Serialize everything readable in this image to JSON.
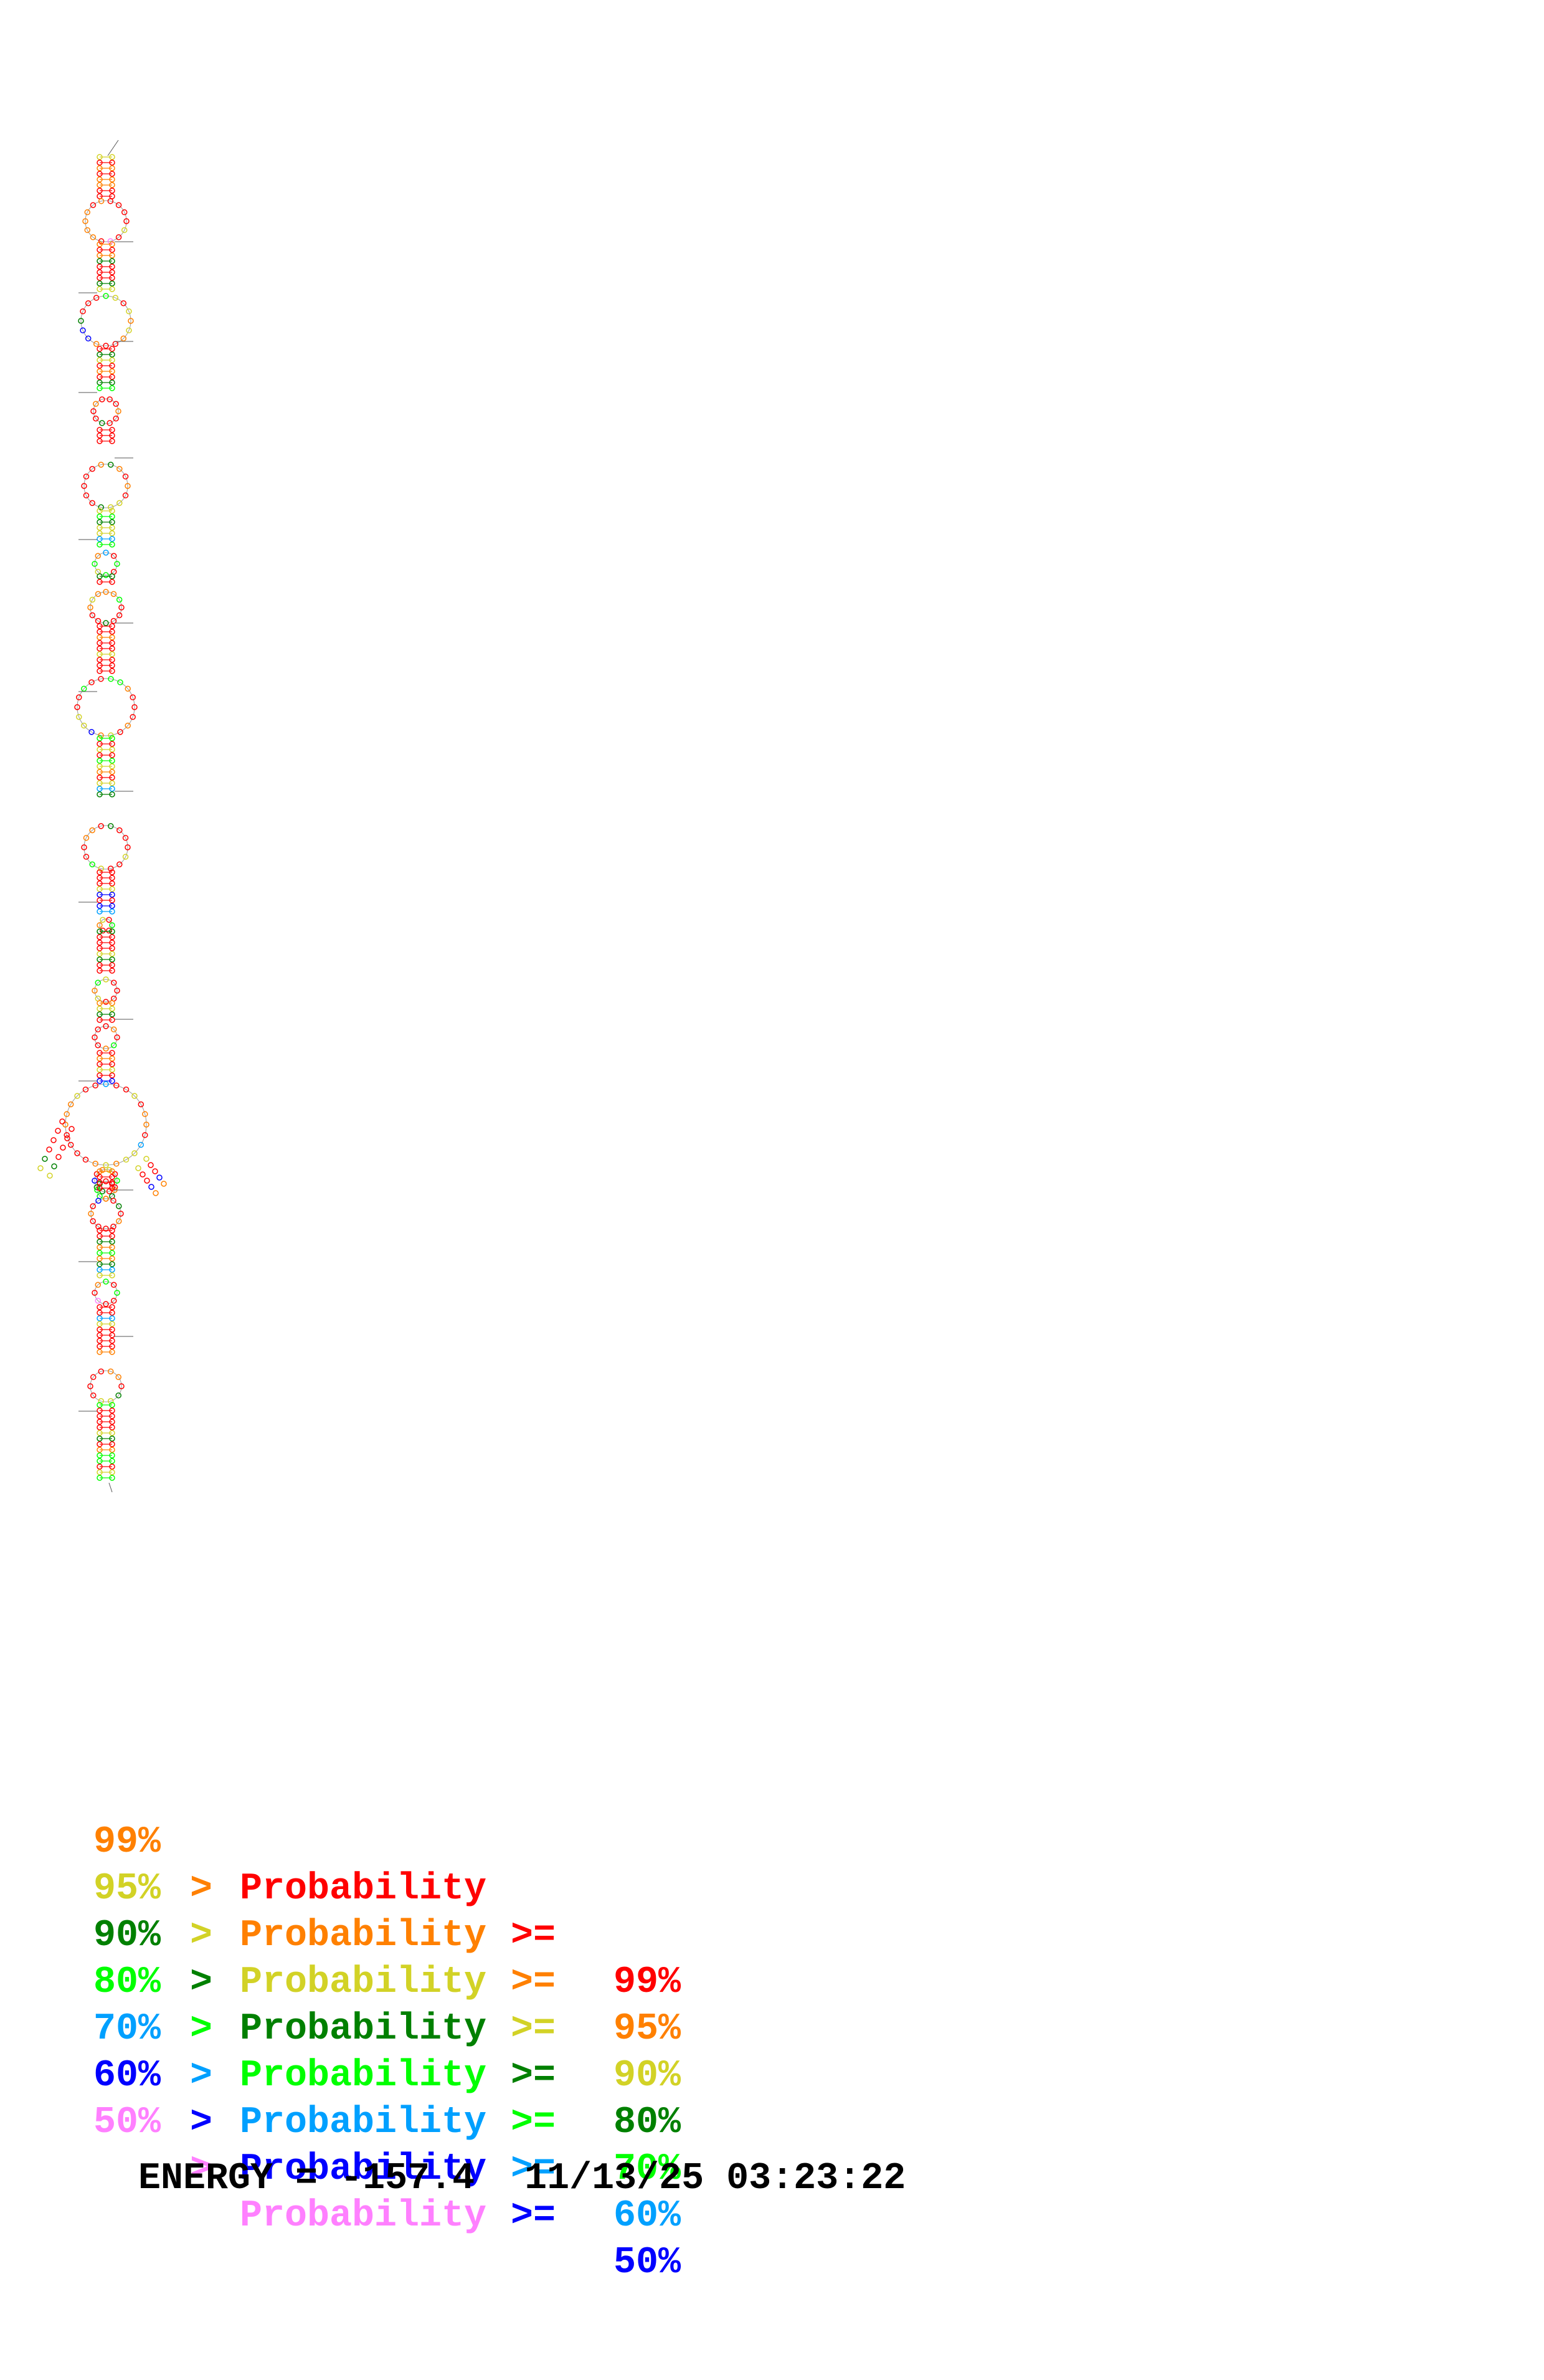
{
  "legend": [
    {
      "high": "",
      "sym1": "",
      "word": "Probability",
      "sym2": ">=",
      "low": "99%",
      "color": "#ff0000"
    },
    {
      "high": "99%",
      "sym1": ">",
      "word": "Probability",
      "sym2": ">=",
      "low": "95%",
      "color": "#ff8000"
    },
    {
      "high": "95%",
      "sym1": ">",
      "word": "Probability",
      "sym2": ">=",
      "low": "90%",
      "color": "#d2d226"
    },
    {
      "high": "90%",
      "sym1": ">",
      "word": "Probability",
      "sym2": ">=",
      "low": "80%",
      "color": "#008000"
    },
    {
      "high": "80%",
      "sym1": ">",
      "word": "Probability",
      "sym2": ">=",
      "low": "70%",
      "color": "#00ff00"
    },
    {
      "high": "70%",
      "sym1": ">",
      "word": "Probability",
      "sym2": ">=",
      "low": "60%",
      "color": "#00a0ff"
    },
    {
      "high": "60%",
      "sym1": ">",
      "word": "Probability",
      "sym2": ">=",
      "low": "50%",
      "color": "#0000ff"
    },
    {
      "high": "50%",
      "sym1": ">",
      "word": "Probability",
      "sym2": "",
      "low": "",
      "color": "#ff80ff"
    }
  ],
  "footer": {
    "energy": "ENERGY = -157.4",
    "timestamp": "11/13/25 03:23:22"
  }
}
